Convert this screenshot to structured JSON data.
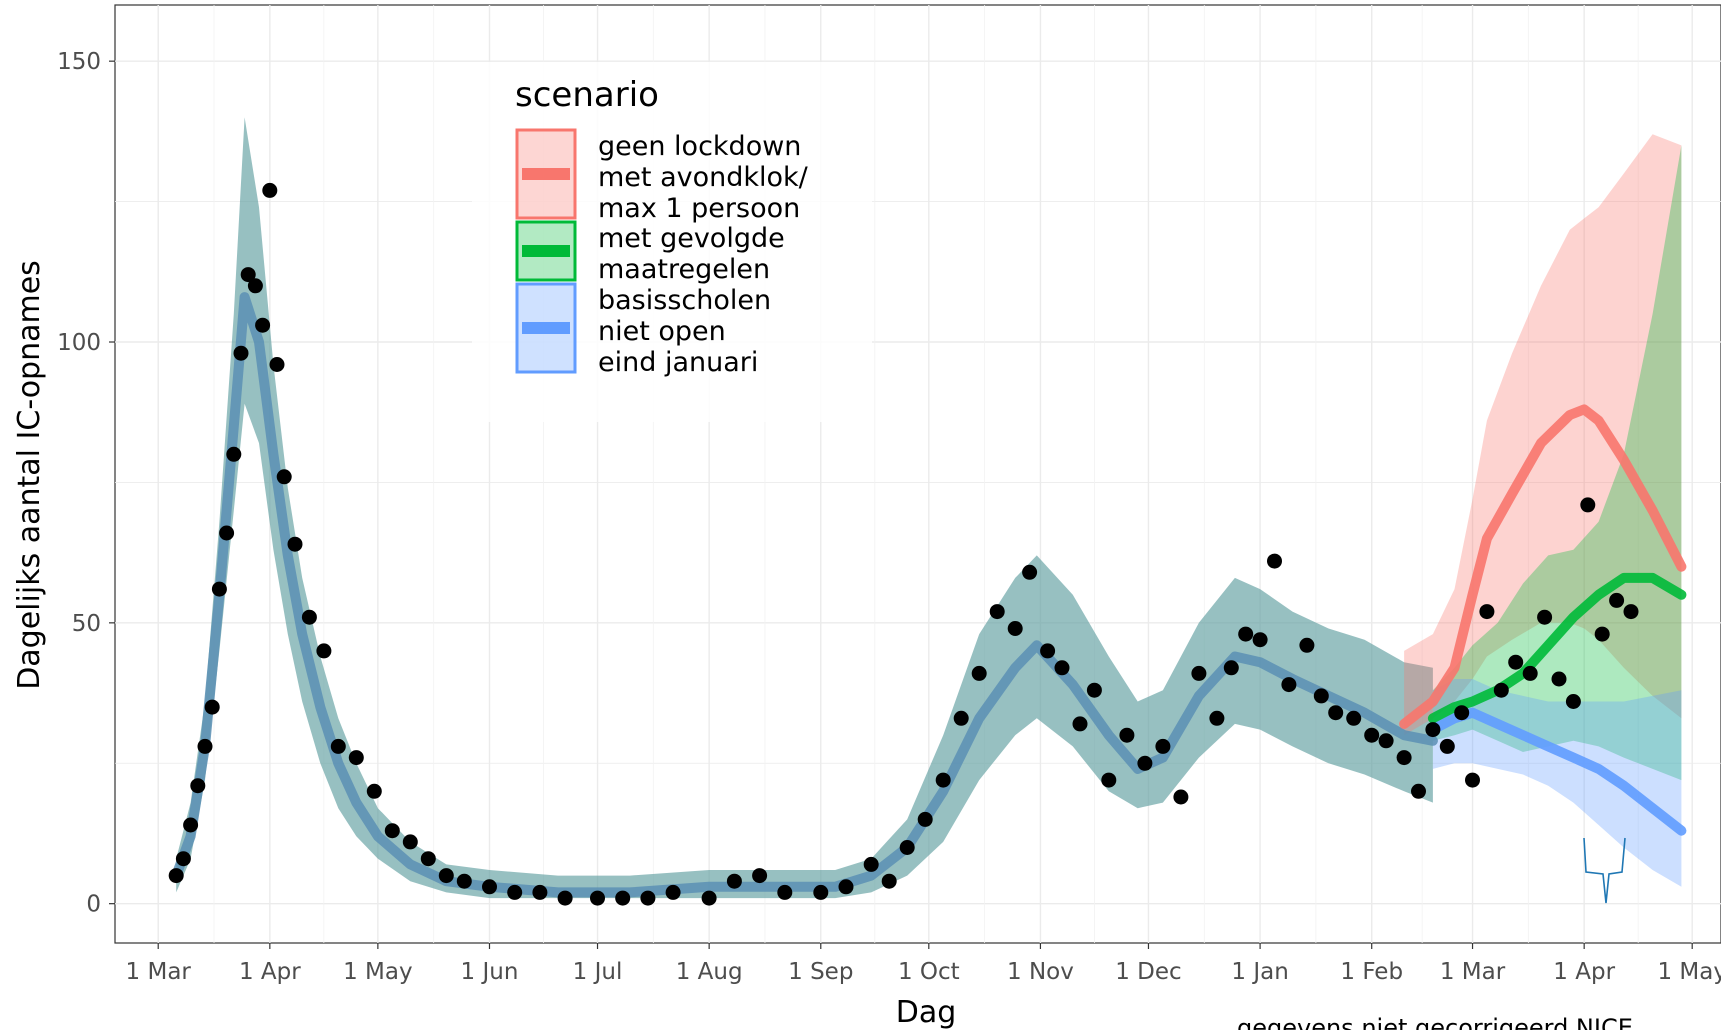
{
  "chart_data": {
    "type": "line",
    "xlabel": "Dag",
    "ylabel": "Dagelijks aantal IC-opnames",
    "caption": "gegevens niet gecorrigeerd NICE",
    "ylim": [
      -7,
      160
    ],
    "xlim": [
      "2020-02-18",
      "2021-05-09"
    ],
    "grid": true,
    "yticks": [
      0,
      50,
      100,
      150
    ],
    "xticks": [
      {
        "date": "2020-03-01",
        "label": "1 Mar"
      },
      {
        "date": "2020-04-01",
        "label": "1 Apr"
      },
      {
        "date": "2020-05-01",
        "label": "1 May"
      },
      {
        "date": "2020-06-01",
        "label": "1 Jun"
      },
      {
        "date": "2020-07-01",
        "label": "1 Jul"
      },
      {
        "date": "2020-08-01",
        "label": "1 Aug"
      },
      {
        "date": "2020-09-01",
        "label": "1 Sep"
      },
      {
        "date": "2020-10-01",
        "label": "1 Oct"
      },
      {
        "date": "2020-11-01",
        "label": "1 Nov"
      },
      {
        "date": "2020-12-01",
        "label": "1 Dec"
      },
      {
        "date": "2021-01-01",
        "label": "1 Jan"
      },
      {
        "date": "2021-02-01",
        "label": "1 Feb"
      },
      {
        "date": "2021-03-01",
        "label": "1 Mar"
      },
      {
        "date": "2021-04-01",
        "label": "1 Apr"
      },
      {
        "date": "2021-05-01",
        "label": "1 May"
      }
    ],
    "legend": {
      "title": "scenario",
      "position": "top-left",
      "entries": [
        {
          "lines": [
            "geen lockdown",
            " met avondklok/",
            " max 1 persoon"
          ],
          "color": "#f8766d"
        },
        {
          "lines": [
            "met gevolgde",
            " maatregelen"
          ],
          "color": "#00ba38"
        },
        {
          "lines": [
            "basisscholen",
            " niet open",
            " eind januari"
          ],
          "color": "#619cff"
        }
      ]
    },
    "model_fit": {
      "color": "#5b8fb4",
      "band_color": "#5f9ea0",
      "x": [
        "2020-03-06",
        "2020-03-10",
        "2020-03-14",
        "2020-03-18",
        "2020-03-22",
        "2020-03-25",
        "2020-03-29",
        "2020-04-02",
        "2020-04-06",
        "2020-04-10",
        "2020-04-15",
        "2020-04-20",
        "2020-04-25",
        "2020-05-01",
        "2020-05-10",
        "2020-05-20",
        "2020-06-01",
        "2020-06-20",
        "2020-07-10",
        "2020-08-01",
        "2020-08-20",
        "2020-09-05",
        "2020-09-15",
        "2020-09-25",
        "2020-10-05",
        "2020-10-15",
        "2020-10-25",
        "2020-10-31",
        "2020-11-10",
        "2020-11-20",
        "2020-11-28",
        "2020-12-05",
        "2020-12-15",
        "2020-12-25",
        "2021-01-01",
        "2021-01-10",
        "2021-01-20",
        "2021-01-30",
        "2021-02-10",
        "2021-02-18"
      ],
      "y": [
        5,
        12,
        28,
        55,
        85,
        108,
        100,
        80,
        62,
        48,
        35,
        25,
        18,
        12,
        7,
        4,
        3,
        2,
        2,
        3,
        3,
        3,
        5,
        10,
        20,
        33,
        42,
        46,
        39,
        30,
        24,
        26,
        37,
        44,
        43,
        40,
        37,
        34,
        30,
        29
      ],
      "band_lower": [
        2,
        8,
        22,
        45,
        70,
        89,
        82,
        63,
        48,
        36,
        25,
        17,
        12,
        8,
        4,
        2,
        1,
        1,
        1,
        1,
        1,
        1,
        2,
        5,
        11,
        22,
        30,
        33,
        28,
        20,
        17,
        18,
        26,
        32,
        31,
        28,
        25,
        23,
        20,
        18
      ],
      "band_upper": [
        8,
        18,
        36,
        68,
        105,
        140,
        124,
        96,
        74,
        58,
        44,
        33,
        25,
        17,
        11,
        7,
        6,
        5,
        5,
        6,
        6,
        6,
        8,
        15,
        30,
        48,
        58,
        62,
        55,
        44,
        36,
        38,
        50,
        58,
        56,
        52,
        49,
        47,
        43,
        42
      ]
    },
    "scenarios": [
      {
        "name": "geen lockdown met avondklok/ max 1 persoon",
        "color": "#f8766d",
        "x": [
          "2021-02-10",
          "2021-02-18",
          "2021-02-24",
          "2021-03-01",
          "2021-03-05",
          "2021-03-12",
          "2021-03-20",
          "2021-03-28",
          "2021-04-01",
          "2021-04-05",
          "2021-04-12",
          "2021-04-20",
          "2021-04-28"
        ],
        "y": [
          32,
          36,
          42,
          55,
          65,
          73,
          82,
          87,
          88,
          86,
          79,
          70,
          60
        ],
        "band_lower": [
          30,
          33,
          36,
          40,
          44,
          47,
          50,
          50,
          49,
          47,
          42,
          37,
          33
        ],
        "band_upper": [
          45,
          48,
          56,
          72,
          86,
          98,
          110,
          120,
          122,
          124,
          130,
          137,
          135
        ]
      },
      {
        "name": "met gevolgde maatregelen",
        "color": "#00ba38",
        "x": [
          "2021-02-18",
          "2021-02-24",
          "2021-03-01",
          "2021-03-08",
          "2021-03-15",
          "2021-03-22",
          "2021-03-29",
          "2021-04-05",
          "2021-04-12",
          "2021-04-20",
          "2021-04-28"
        ],
        "y": [
          33,
          35,
          36,
          38,
          41,
          46,
          51,
          55,
          58,
          58,
          55
        ],
        "band_lower": [
          29,
          30,
          31,
          29,
          27,
          28,
          29,
          28,
          26,
          24,
          22
        ],
        "band_upper": [
          38,
          42,
          46,
          50,
          57,
          62,
          63,
          68,
          80,
          105,
          135
        ]
      },
      {
        "name": "basisscholen niet open eind januari",
        "color": "#619cff",
        "x": [
          "2021-02-18",
          "2021-02-24",
          "2021-03-01",
          "2021-03-08",
          "2021-03-15",
          "2021-03-22",
          "2021-03-29",
          "2021-04-05",
          "2021-04-12",
          "2021-04-20",
          "2021-04-28"
        ],
        "y": [
          31,
          33,
          34,
          32,
          30,
          28,
          26,
          24,
          21,
          17,
          13
        ],
        "band_lower": [
          24,
          25,
          25,
          24,
          23,
          21,
          18,
          14,
          10,
          6,
          3
        ],
        "band_upper": [
          38,
          40,
          40,
          38,
          37,
          36,
          36,
          36,
          36,
          37,
          38
        ]
      }
    ],
    "observed": {
      "color": "#000000",
      "x": [
        "2020-03-06",
        "2020-03-08",
        "2020-03-10",
        "2020-03-12",
        "2020-03-14",
        "2020-03-16",
        "2020-03-18",
        "2020-03-20",
        "2020-03-22",
        "2020-03-24",
        "2020-03-26",
        "2020-03-28",
        "2020-03-30",
        "2020-04-01",
        "2020-04-03",
        "2020-04-05",
        "2020-04-08",
        "2020-04-12",
        "2020-04-16",
        "2020-04-20",
        "2020-04-25",
        "2020-04-30",
        "2020-05-05",
        "2020-05-10",
        "2020-05-15",
        "2020-05-20",
        "2020-05-25",
        "2020-06-01",
        "2020-06-08",
        "2020-06-15",
        "2020-06-22",
        "2020-07-01",
        "2020-07-08",
        "2020-07-15",
        "2020-07-22",
        "2020-08-01",
        "2020-08-08",
        "2020-08-15",
        "2020-08-22",
        "2020-09-01",
        "2020-09-08",
        "2020-09-15",
        "2020-09-20",
        "2020-09-25",
        "2020-09-30",
        "2020-10-05",
        "2020-10-10",
        "2020-10-15",
        "2020-10-20",
        "2020-10-25",
        "2020-10-29",
        "2020-11-03",
        "2020-11-07",
        "2020-11-12",
        "2020-11-16",
        "2020-11-20",
        "2020-11-25",
        "2020-11-30",
        "2020-12-05",
        "2020-12-10",
        "2020-12-15",
        "2020-12-20",
        "2020-12-24",
        "2020-12-28",
        "2021-01-01",
        "2021-01-05",
        "2021-01-09",
        "2021-01-14",
        "2021-01-18",
        "2021-01-22",
        "2021-01-27",
        "2021-02-01",
        "2021-02-05",
        "2021-02-10",
        "2021-02-14",
        "2021-02-18",
        "2021-02-22",
        "2021-02-26",
        "2021-03-01",
        "2021-03-05",
        "2021-03-09",
        "2021-03-13",
        "2021-03-17",
        "2021-03-21",
        "2021-03-25",
        "2021-03-29",
        "2021-04-02",
        "2021-04-06",
        "2021-04-10",
        "2021-04-14"
      ],
      "y": [
        5,
        8,
        14,
        21,
        28,
        35,
        56,
        66,
        80,
        98,
        112,
        110,
        103,
        127,
        96,
        76,
        64,
        51,
        45,
        28,
        26,
        20,
        13,
        11,
        8,
        5,
        4,
        3,
        2,
        2,
        1,
        1,
        1,
        1,
        2,
        1,
        4,
        5,
        2,
        2,
        3,
        7,
        4,
        10,
        15,
        22,
        33,
        41,
        52,
        49,
        59,
        45,
        42,
        32,
        38,
        22,
        30,
        25,
        28,
        19,
        41,
        33,
        42,
        48,
        47,
        61,
        39,
        46,
        37,
        34,
        33,
        30,
        29,
        26,
        20,
        31,
        28,
        34,
        22,
        52,
        38,
        43,
        41,
        51,
        40,
        36,
        71,
        48,
        54,
        52
      ]
    }
  }
}
